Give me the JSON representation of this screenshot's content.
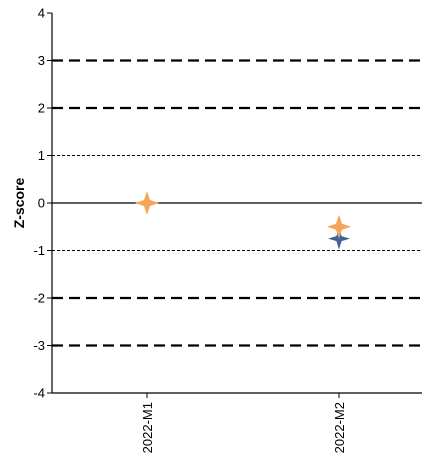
{
  "chart_data": {
    "type": "scatter",
    "title": "",
    "xlabel": "",
    "ylabel": "Z-score",
    "categories": [
      "2022-M1",
      "2022-M2"
    ],
    "ylim": [
      -4,
      4
    ],
    "yticks": [
      -4,
      -3,
      -2,
      -1,
      0,
      1,
      2,
      3,
      4
    ],
    "reference_lines": [
      {
        "y": 3,
        "style": "dashed-thick"
      },
      {
        "y": 2,
        "style": "dashed-thick"
      },
      {
        "y": 1,
        "style": "dashed-thin"
      },
      {
        "y": 0,
        "style": "solid"
      },
      {
        "y": -1,
        "style": "dashed-thin"
      },
      {
        "y": -2,
        "style": "dashed-thick"
      },
      {
        "y": -3,
        "style": "dashed-thick"
      }
    ],
    "series": [
      {
        "marker": "star",
        "color": "#F5A45B",
        "values": [
          0.0,
          -0.5
        ]
      },
      {
        "marker": "diamond",
        "color": "#3C6496",
        "values": [
          null,
          -0.75
        ]
      }
    ],
    "grid": false,
    "legend": "none"
  }
}
